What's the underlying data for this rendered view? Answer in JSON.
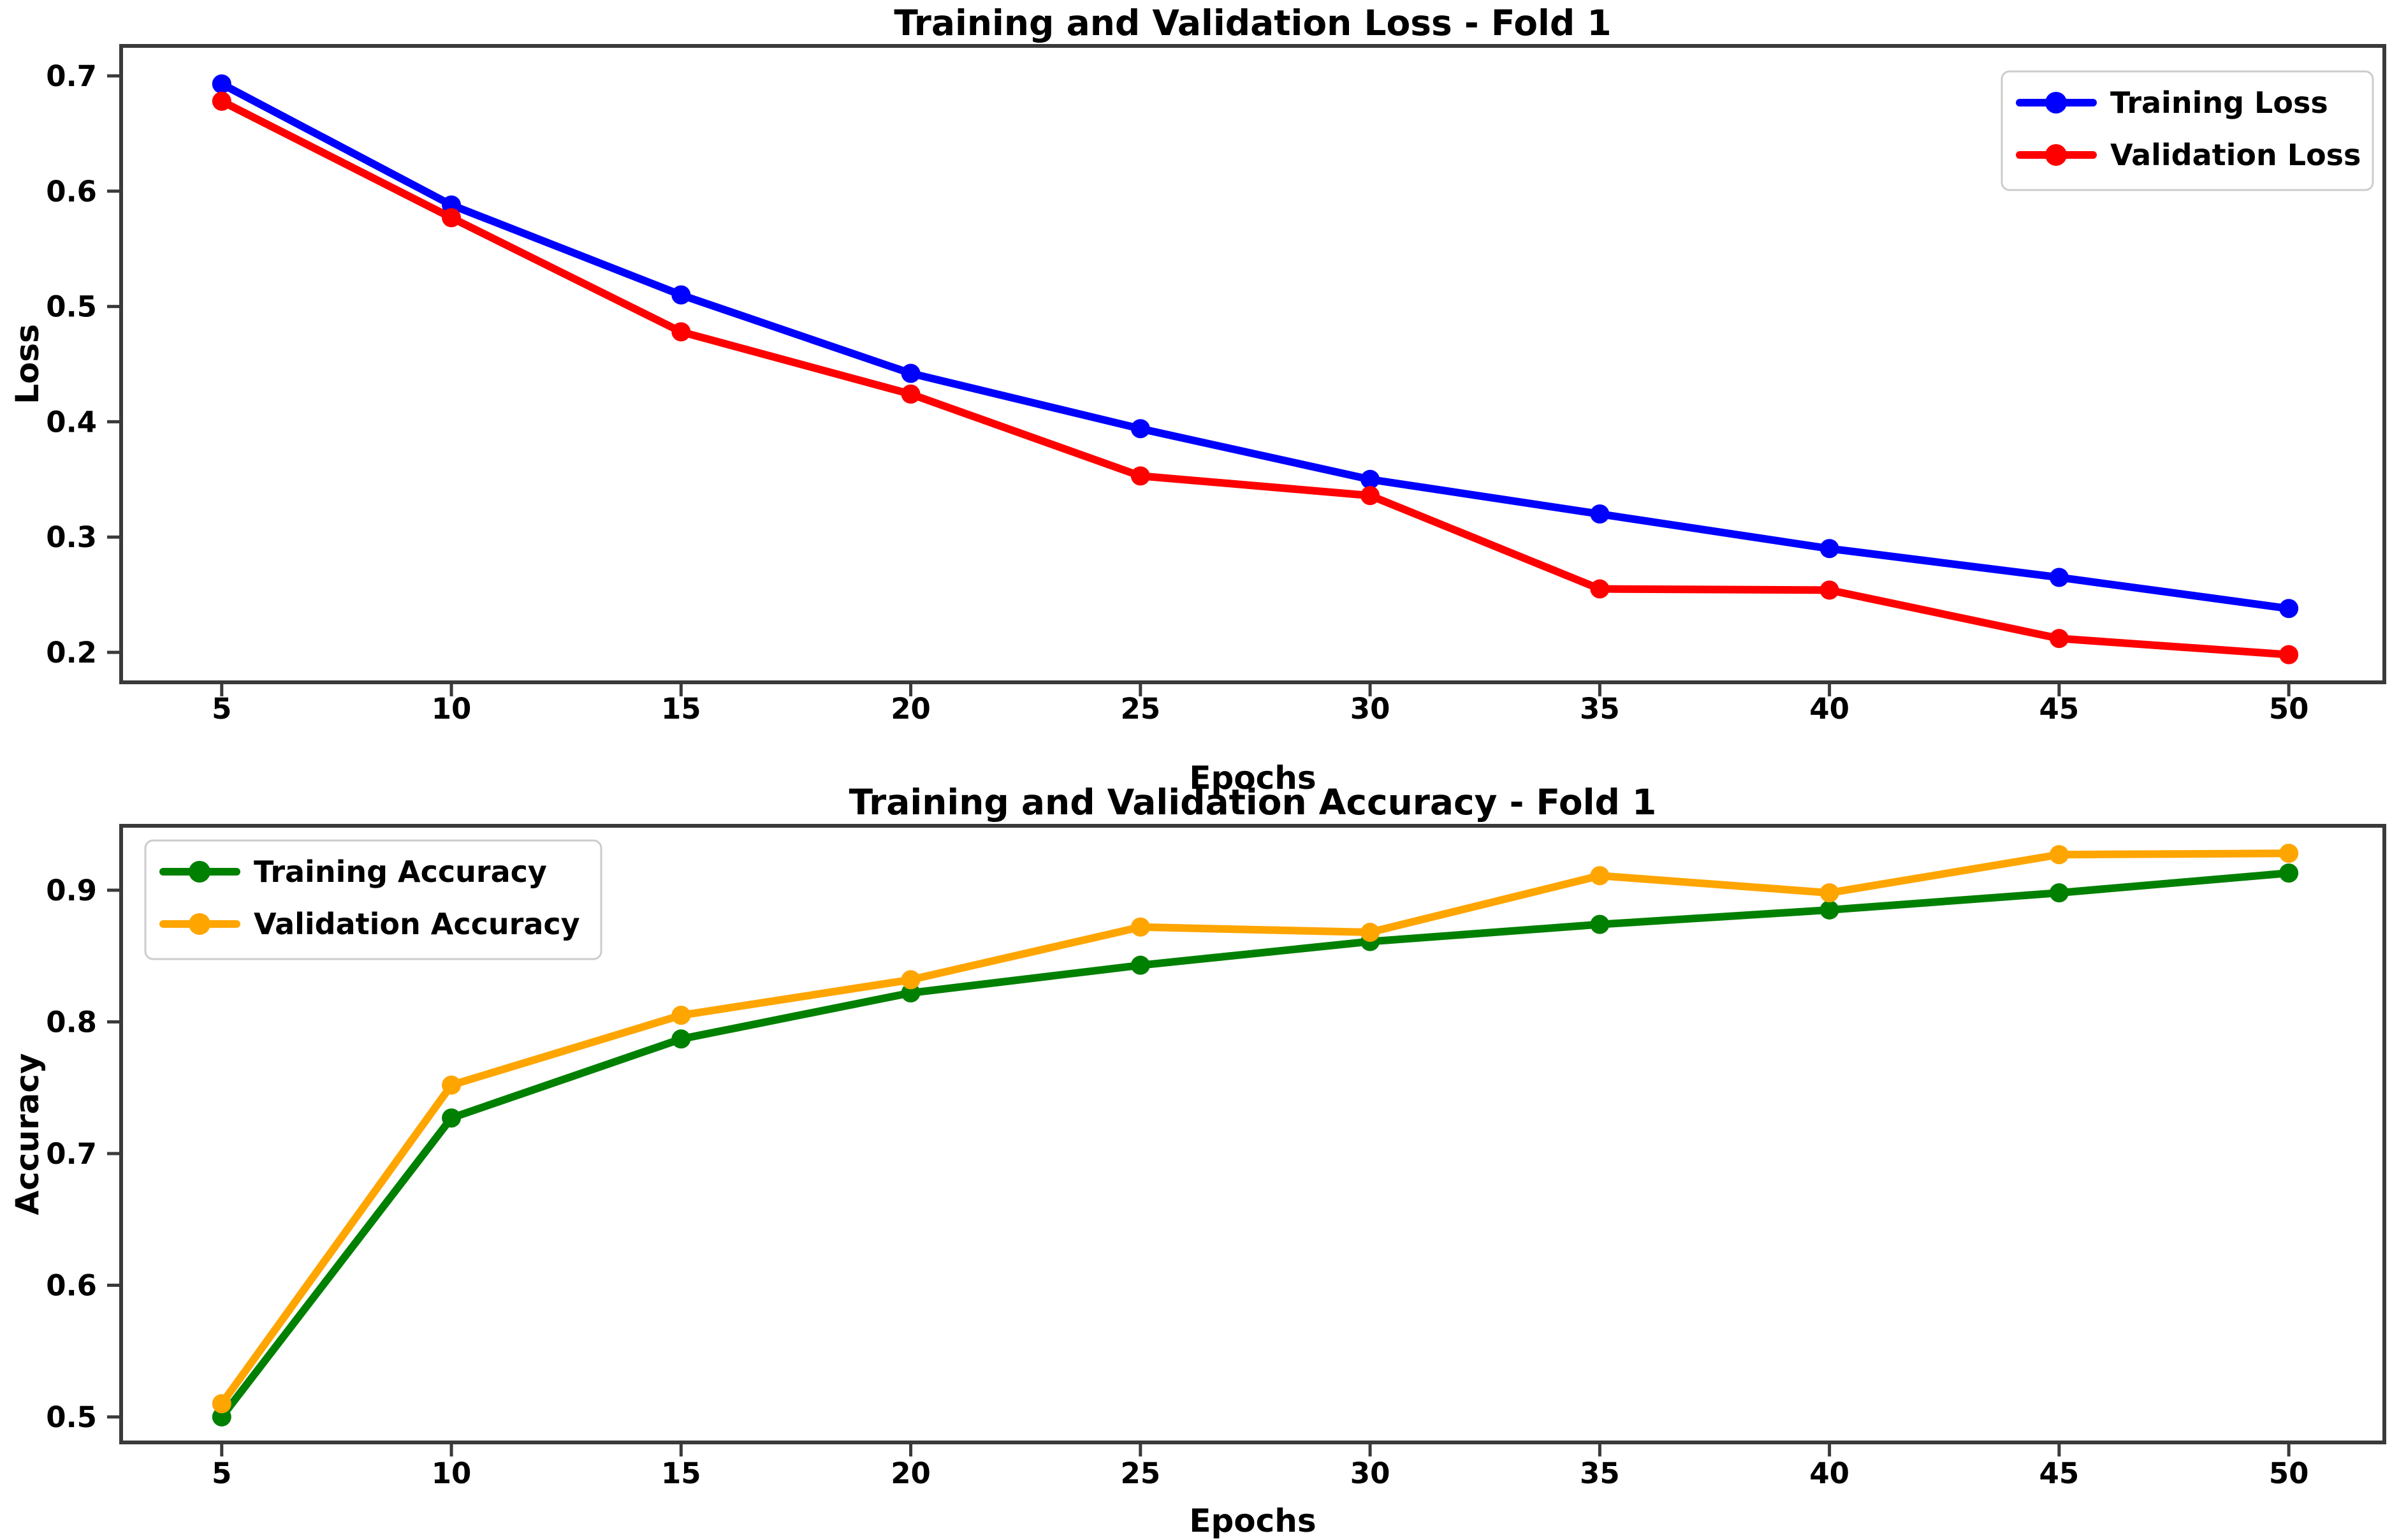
{
  "figure": {
    "background": "#ffffff",
    "spine_color": "#3a3a3a",
    "legend_border_color": "#cccccc"
  },
  "chart_data": [
    {
      "type": "line",
      "title": "Training and Validation Loss - Fold 1",
      "xlabel": "Epochs",
      "ylabel": "Loss",
      "x": [
        5,
        10,
        15,
        20,
        25,
        30,
        35,
        40,
        45,
        50
      ],
      "xticks": [
        5,
        10,
        15,
        20,
        25,
        30,
        35,
        40,
        45,
        50
      ],
      "yticks": [
        0.2,
        0.3,
        0.4,
        0.5,
        0.6,
        0.7
      ],
      "xlim": [
        2.81,
        52.08
      ],
      "ylim": [
        0.174,
        0.726
      ],
      "grid": false,
      "legend_position": "top-right",
      "series": [
        {
          "name": "Training Loss",
          "color": "#0000ff",
          "marker": "circle",
          "values": [
            0.693,
            0.588,
            0.51,
            0.442,
            0.394,
            0.35,
            0.32,
            0.29,
            0.265,
            0.238
          ]
        },
        {
          "name": "Validation Loss",
          "color": "#ff0000",
          "marker": "circle",
          "values": [
            0.678,
            0.577,
            0.478,
            0.424,
            0.353,
            0.336,
            0.255,
            0.254,
            0.212,
            0.198
          ]
        }
      ]
    },
    {
      "type": "line",
      "title": "Training and Validation Accuracy - Fold 1",
      "xlabel": "Epochs",
      "ylabel": "Accuracy",
      "x": [
        5,
        10,
        15,
        20,
        25,
        30,
        35,
        40,
        45,
        50
      ],
      "xticks": [
        5,
        10,
        15,
        20,
        25,
        30,
        35,
        40,
        45,
        50
      ],
      "yticks": [
        0.5,
        0.6,
        0.7,
        0.8,
        0.9
      ],
      "xlim": [
        2.81,
        52.08
      ],
      "ylim": [
        0.4806,
        0.9489
      ],
      "grid": false,
      "legend_position": "top-left",
      "series": [
        {
          "name": "Training Accuracy",
          "color": "#008000",
          "marker": "circle",
          "values": [
            0.5,
            0.727,
            0.787,
            0.822,
            0.843,
            0.861,
            0.874,
            0.885,
            0.898,
            0.913
          ]
        },
        {
          "name": "Validation Accuracy",
          "color": "#ffa500",
          "marker": "circle",
          "values": [
            0.51,
            0.752,
            0.805,
            0.832,
            0.872,
            0.868,
            0.911,
            0.898,
            0.927,
            0.928
          ]
        }
      ]
    }
  ]
}
